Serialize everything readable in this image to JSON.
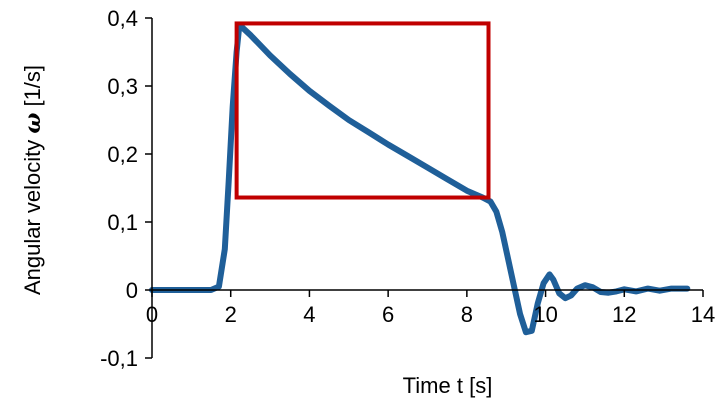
{
  "chart_data": {
    "type": "line",
    "title": "",
    "xlabel": "Time t [s]",
    "ylabel_prefix": "Angular velocity ",
    "ylabel_symbol": "ω",
    "ylabel_suffix": " [1/s]",
    "xlim": [
      0,
      14
    ],
    "ylim": [
      -0.1,
      0.4
    ],
    "x_ticks": [
      0,
      2,
      4,
      6,
      8,
      10,
      12,
      14
    ],
    "x_tick_labels": [
      "0",
      "2",
      "4",
      "6",
      "8",
      "10",
      "12",
      "14"
    ],
    "y_ticks": [
      -0.1,
      0,
      0.1,
      0.2,
      0.3,
      0.4
    ],
    "y_tick_labels": [
      "-0,1",
      "0",
      "0,1",
      "0,2",
      "0,3",
      "0,4"
    ],
    "grid": false,
    "legend": "none",
    "series": [
      {
        "color": "#1f5f99",
        "x": [
          0,
          0.5,
          1.0,
          1.5,
          1.7,
          1.85,
          1.95,
          2.05,
          2.15,
          2.22,
          2.5,
          3.0,
          3.5,
          4.0,
          4.5,
          5.0,
          5.5,
          6.0,
          6.5,
          7.0,
          7.5,
          8.0,
          8.4,
          8.6,
          8.75,
          8.9,
          9.05,
          9.2,
          9.35,
          9.5,
          9.65,
          9.8,
          9.95,
          10.1,
          10.2,
          10.35,
          10.5,
          10.65,
          10.8,
          11.0,
          11.2,
          11.4,
          11.6,
          11.8,
          12.0,
          12.3,
          12.6,
          12.9,
          13.2,
          13.6
        ],
        "y": [
          0,
          0,
          0,
          0,
          0.005,
          0.06,
          0.16,
          0.27,
          0.35,
          0.39,
          0.375,
          0.345,
          0.318,
          0.293,
          0.271,
          0.25,
          0.232,
          0.214,
          0.197,
          0.18,
          0.163,
          0.146,
          0.136,
          0.13,
          0.115,
          0.085,
          0.045,
          0.005,
          -0.035,
          -0.062,
          -0.06,
          -0.02,
          0.01,
          0.023,
          0.015,
          -0.005,
          -0.012,
          -0.008,
          0.002,
          0.007,
          0.004,
          -0.003,
          -0.004,
          -0.002,
          0.001,
          -0.002,
          0.002,
          -0.001,
          0.002,
          0.002
        ]
      }
    ],
    "highlight_box": {
      "x": [
        2.15,
        8.55
      ],
      "y": [
        0.136,
        0.392
      ],
      "color": "#c00000"
    }
  }
}
